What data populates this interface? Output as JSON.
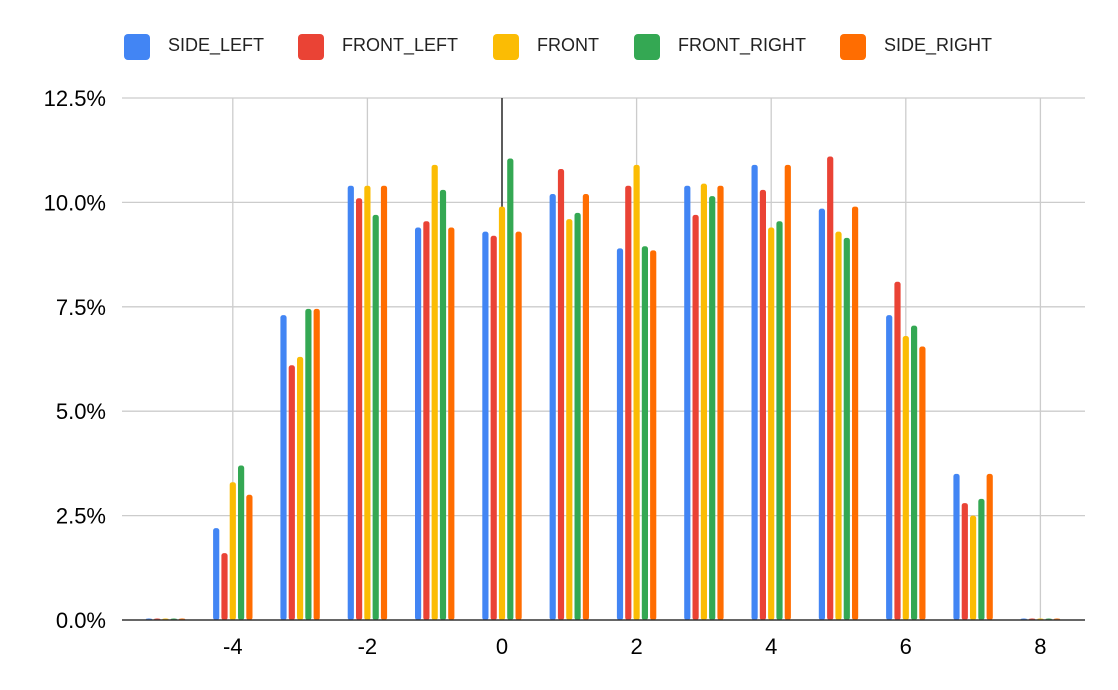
{
  "chart_data": {
    "type": "bar",
    "title": "",
    "xlabel": "",
    "ylabel": "",
    "legend_position": "top",
    "grid": true,
    "x": [
      -5,
      -4,
      -3,
      -2,
      -1,
      0,
      1,
      2,
      3,
      4,
      5,
      6,
      7,
      8
    ],
    "x_ticks": [
      -4,
      -2,
      0,
      2,
      4,
      6,
      8
    ],
    "x_tick_labels": [
      "-4",
      "-2",
      "0",
      "2",
      "4",
      "6",
      "8"
    ],
    "ylim": [
      0,
      12.5
    ],
    "y_ticks": [
      0,
      2.5,
      5,
      7.5,
      10,
      12.5
    ],
    "y_tick_labels": [
      "0.0%",
      "2.5%",
      "5.0%",
      "7.5%",
      "10.0%",
      "12.5%"
    ],
    "series": [
      {
        "name": "SIDE_LEFT",
        "color": "#4285F4",
        "values": [
          0,
          2.2,
          7.3,
          10.4,
          9.4,
          9.3,
          10.2,
          8.9,
          10.4,
          10.9,
          9.85,
          7.3,
          3.5,
          0
        ]
      },
      {
        "name": "FRONT_LEFT",
        "color": "#EA4335",
        "values": [
          0,
          1.6,
          6.1,
          10.1,
          9.55,
          9.2,
          10.8,
          10.4,
          9.7,
          10.3,
          11.1,
          8.1,
          2.8,
          0
        ]
      },
      {
        "name": "FRONT",
        "color": "#FBBC04",
        "values": [
          0,
          3.3,
          6.3,
          10.4,
          10.9,
          9.9,
          9.6,
          10.9,
          10.45,
          9.4,
          9.3,
          6.8,
          2.5,
          0
        ]
      },
      {
        "name": "FRONT_RIGHT",
        "color": "#34A853",
        "values": [
          0,
          3.7,
          7.45,
          9.7,
          10.3,
          11.05,
          9.75,
          8.95,
          10.15,
          9.55,
          9.15,
          7.05,
          2.9,
          0
        ]
      },
      {
        "name": "SIDE_RIGHT",
        "color": "#FF6D01",
        "values": [
          0,
          3.0,
          7.45,
          10.4,
          9.4,
          9.3,
          10.2,
          8.85,
          10.4,
          10.9,
          9.9,
          6.55,
          3.5,
          0
        ]
      }
    ]
  }
}
